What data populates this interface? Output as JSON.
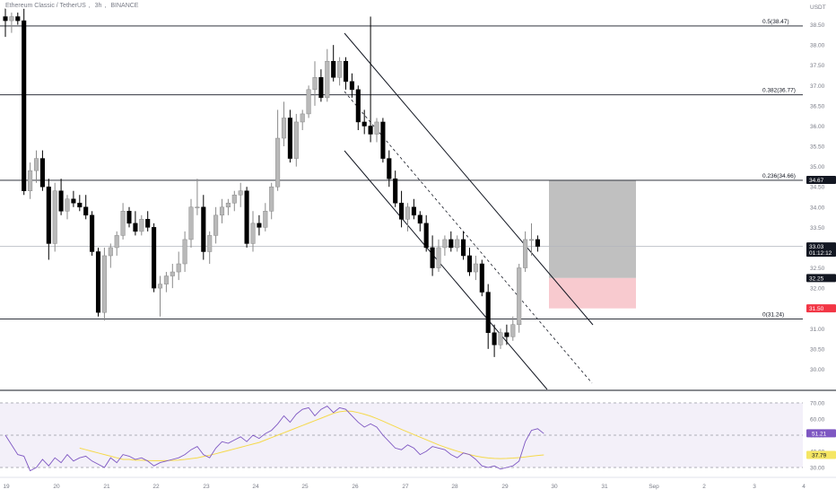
{
  "header": {
    "symbol": "Ethereum Classic / TetherUS",
    "interval": "3h",
    "exchange": "BINANCE"
  },
  "chart_data": {
    "type": "candlestick",
    "title": "Ethereum Classic / TetherUS, 3h, BINANCE",
    "ylim": [
      29.5,
      39.0
    ],
    "y_unit_label": "USDT",
    "y_ticks": [
      "38.50",
      "38.00",
      "37.50",
      "37.00",
      "36.50",
      "36.00",
      "35.50",
      "35.00",
      "34.50",
      "34.00",
      "33.50",
      "33.00",
      "32.50",
      "32.00",
      "31.50",
      "31.00",
      "30.50",
      "30.00",
      "29.50"
    ],
    "x_ticks": [
      "19",
      "20",
      "21",
      "22",
      "23",
      "24",
      "25",
      "26",
      "27",
      "28",
      "29",
      "30",
      "31",
      "Sep",
      "2",
      "3",
      "4"
    ],
    "fib_levels": [
      {
        "label": "0.5(38.47)",
        "value": 38.47
      },
      {
        "label": "0.382(36.77)",
        "value": 36.77
      },
      {
        "label": "0.236(34.66)",
        "value": 34.66
      },
      {
        "label": "0(31.24)",
        "value": 31.24
      }
    ],
    "price_badges": [
      {
        "label": "34.67",
        "value": 34.67,
        "color": "#131722"
      },
      {
        "label": "33.03",
        "label2": "01:12:12",
        "value": 33.03,
        "color": "#131722"
      },
      {
        "label": "32.25",
        "value": 32.25,
        "color": "#131722"
      },
      {
        "label": "31.50",
        "value": 31.5,
        "color": "#f23645"
      }
    ],
    "position": {
      "entry": 32.25,
      "target": 34.67,
      "stop": 31.5,
      "profit_color": "#9e9e9e",
      "loss_color": "#f7c1c7"
    },
    "candles": [
      {
        "o": 38.7,
        "h": 38.9,
        "l": 38.2,
        "c": 38.6
      },
      {
        "o": 38.6,
        "h": 38.8,
        "l": 38.3,
        "c": 38.7
      },
      {
        "o": 38.7,
        "h": 38.8,
        "l": 38.5,
        "c": 38.6
      },
      {
        "o": 38.6,
        "h": 38.9,
        "l": 34.3,
        "c": 34.4
      },
      {
        "o": 34.4,
        "h": 35.1,
        "l": 34.2,
        "c": 34.9
      },
      {
        "o": 34.9,
        "h": 35.4,
        "l": 34.6,
        "c": 35.2
      },
      {
        "o": 35.2,
        "h": 35.4,
        "l": 34.4,
        "c": 34.5
      },
      {
        "o": 34.5,
        "h": 34.7,
        "l": 32.7,
        "c": 33.1
      },
      {
        "o": 33.1,
        "h": 34.6,
        "l": 32.9,
        "c": 34.4
      },
      {
        "o": 34.4,
        "h": 34.7,
        "l": 33.8,
        "c": 33.9
      },
      {
        "o": 33.9,
        "h": 34.3,
        "l": 33.7,
        "c": 34.2
      },
      {
        "o": 34.2,
        "h": 34.4,
        "l": 34.0,
        "c": 34.1
      },
      {
        "o": 34.1,
        "h": 34.3,
        "l": 33.9,
        "c": 34.0
      },
      {
        "o": 34.0,
        "h": 34.3,
        "l": 33.7,
        "c": 33.8
      },
      {
        "o": 33.8,
        "h": 33.9,
        "l": 32.8,
        "c": 32.9
      },
      {
        "o": 32.9,
        "h": 33.0,
        "l": 31.3,
        "c": 31.4
      },
      {
        "o": 31.4,
        "h": 33.0,
        "l": 31.2,
        "c": 32.8
      },
      {
        "o": 32.8,
        "h": 33.1,
        "l": 32.5,
        "c": 33.0
      },
      {
        "o": 33.0,
        "h": 33.4,
        "l": 32.8,
        "c": 33.3
      },
      {
        "o": 33.3,
        "h": 34.1,
        "l": 33.2,
        "c": 33.9
      },
      {
        "o": 33.9,
        "h": 34.0,
        "l": 33.5,
        "c": 33.6
      },
      {
        "o": 33.6,
        "h": 33.9,
        "l": 33.3,
        "c": 33.4
      },
      {
        "o": 33.4,
        "h": 33.8,
        "l": 33.3,
        "c": 33.7
      },
      {
        "o": 33.7,
        "h": 33.9,
        "l": 33.4,
        "c": 33.5
      },
      {
        "o": 33.5,
        "h": 33.6,
        "l": 31.9,
        "c": 32.0
      },
      {
        "o": 32.0,
        "h": 32.3,
        "l": 31.3,
        "c": 32.1
      },
      {
        "o": 32.1,
        "h": 32.4,
        "l": 31.9,
        "c": 32.3
      },
      {
        "o": 32.3,
        "h": 32.6,
        "l": 32.0,
        "c": 32.4
      },
      {
        "o": 32.4,
        "h": 32.9,
        "l": 32.2,
        "c": 32.6
      },
      {
        "o": 32.6,
        "h": 33.4,
        "l": 32.4,
        "c": 33.2
      },
      {
        "o": 33.2,
        "h": 34.2,
        "l": 33.0,
        "c": 34.0
      },
      {
        "o": 34.0,
        "h": 34.7,
        "l": 33.8,
        "c": 34.0
      },
      {
        "o": 34.0,
        "h": 34.3,
        "l": 32.7,
        "c": 32.9
      },
      {
        "o": 32.9,
        "h": 33.4,
        "l": 32.6,
        "c": 33.3
      },
      {
        "o": 33.3,
        "h": 34.0,
        "l": 33.1,
        "c": 33.8
      },
      {
        "o": 33.8,
        "h": 34.2,
        "l": 33.6,
        "c": 34.0
      },
      {
        "o": 34.0,
        "h": 34.2,
        "l": 33.8,
        "c": 34.1
      },
      {
        "o": 34.1,
        "h": 34.4,
        "l": 33.9,
        "c": 34.3
      },
      {
        "o": 34.3,
        "h": 34.6,
        "l": 34.0,
        "c": 34.4
      },
      {
        "o": 34.4,
        "h": 34.5,
        "l": 33.0,
        "c": 33.1
      },
      {
        "o": 33.1,
        "h": 33.9,
        "l": 32.9,
        "c": 33.6
      },
      {
        "o": 33.6,
        "h": 33.8,
        "l": 33.3,
        "c": 33.5
      },
      {
        "o": 33.5,
        "h": 34.1,
        "l": 33.4,
        "c": 33.9
      },
      {
        "o": 33.9,
        "h": 34.6,
        "l": 33.7,
        "c": 34.5
      },
      {
        "o": 34.5,
        "h": 36.4,
        "l": 34.4,
        "c": 35.7
      },
      {
        "o": 35.7,
        "h": 36.6,
        "l": 35.5,
        "c": 36.2
      },
      {
        "o": 36.2,
        "h": 36.4,
        "l": 35.1,
        "c": 35.2
      },
      {
        "o": 35.2,
        "h": 36.3,
        "l": 35.0,
        "c": 36.1
      },
      {
        "o": 36.1,
        "h": 36.4,
        "l": 35.9,
        "c": 36.3
      },
      {
        "o": 36.3,
        "h": 37.0,
        "l": 36.2,
        "c": 36.9
      },
      {
        "o": 36.9,
        "h": 37.6,
        "l": 36.5,
        "c": 37.2
      },
      {
        "o": 37.2,
        "h": 37.4,
        "l": 36.6,
        "c": 36.7
      },
      {
        "o": 36.7,
        "h": 37.9,
        "l": 36.6,
        "c": 37.6
      },
      {
        "o": 37.6,
        "h": 38.0,
        "l": 37.1,
        "c": 37.2
      },
      {
        "o": 37.2,
        "h": 37.7,
        "l": 37.0,
        "c": 37.6
      },
      {
        "o": 37.6,
        "h": 37.7,
        "l": 36.9,
        "c": 37.1
      },
      {
        "o": 37.1,
        "h": 37.3,
        "l": 36.7,
        "c": 36.9
      },
      {
        "o": 36.9,
        "h": 37.0,
        "l": 35.9,
        "c": 36.1
      },
      {
        "o": 36.1,
        "h": 36.4,
        "l": 35.8,
        "c": 36.0
      },
      {
        "o": 36.0,
        "h": 38.7,
        "l": 35.6,
        "c": 35.8
      },
      {
        "o": 35.8,
        "h": 36.2,
        "l": 35.6,
        "c": 36.1
      },
      {
        "o": 36.1,
        "h": 36.2,
        "l": 35.1,
        "c": 35.2
      },
      {
        "o": 35.2,
        "h": 35.4,
        "l": 34.5,
        "c": 34.7
      },
      {
        "o": 34.7,
        "h": 34.9,
        "l": 34.0,
        "c": 34.1
      },
      {
        "o": 34.1,
        "h": 34.4,
        "l": 33.5,
        "c": 33.7
      },
      {
        "o": 33.7,
        "h": 34.1,
        "l": 33.4,
        "c": 34.0
      },
      {
        "o": 34.0,
        "h": 34.2,
        "l": 33.7,
        "c": 33.8
      },
      {
        "o": 33.8,
        "h": 33.9,
        "l": 33.4,
        "c": 33.6
      },
      {
        "o": 33.6,
        "h": 33.8,
        "l": 32.9,
        "c": 33.0
      },
      {
        "o": 33.0,
        "h": 33.3,
        "l": 32.3,
        "c": 32.5
      },
      {
        "o": 32.5,
        "h": 33.2,
        "l": 32.4,
        "c": 33.0
      },
      {
        "o": 33.0,
        "h": 33.3,
        "l": 32.8,
        "c": 33.2
      },
      {
        "o": 33.2,
        "h": 33.4,
        "l": 32.9,
        "c": 33.0
      },
      {
        "o": 33.0,
        "h": 33.3,
        "l": 32.9,
        "c": 33.2
      },
      {
        "o": 33.2,
        "h": 33.4,
        "l": 32.7,
        "c": 32.8
      },
      {
        "o": 32.8,
        "h": 33.0,
        "l": 32.3,
        "c": 32.4
      },
      {
        "o": 32.4,
        "h": 32.8,
        "l": 32.2,
        "c": 32.6
      },
      {
        "o": 32.6,
        "h": 32.7,
        "l": 31.8,
        "c": 31.9
      },
      {
        "o": 31.9,
        "h": 32.1,
        "l": 30.5,
        "c": 30.9
      },
      {
        "o": 30.9,
        "h": 31.1,
        "l": 30.3,
        "c": 30.6
      },
      {
        "o": 30.6,
        "h": 31.0,
        "l": 30.5,
        "c": 30.9
      },
      {
        "o": 30.9,
        "h": 31.1,
        "l": 30.6,
        "c": 30.8
      },
      {
        "o": 30.8,
        "h": 31.3,
        "l": 30.7,
        "c": 31.1
      },
      {
        "o": 31.1,
        "h": 32.6,
        "l": 30.9,
        "c": 32.5
      },
      {
        "o": 32.5,
        "h": 33.4,
        "l": 32.4,
        "c": 33.2
      },
      {
        "o": 33.2,
        "h": 33.6,
        "l": 32.8,
        "c": 33.2
      },
      {
        "o": 33.2,
        "h": 33.3,
        "l": 32.9,
        "c": 33.03
      }
    ],
    "rsi": {
      "ylim": [
        25,
        75
      ],
      "y_ticks": [
        "70.00",
        "60.00",
        "50.00",
        "40.00",
        "30.00"
      ],
      "badges": [
        {
          "label": "51.21",
          "value": 51.21,
          "color": "#7e57c2"
        },
        {
          "label": "37.79",
          "value": 37.79,
          "color": "#f5e663"
        }
      ],
      "upper": 70,
      "lower": 30,
      "mid": 50,
      "values": [
        50,
        44,
        38,
        37,
        28,
        30,
        35,
        31,
        36,
        33,
        38,
        34,
        36,
        37,
        34,
        32,
        30,
        36,
        33,
        38,
        37,
        35,
        36,
        34,
        31,
        33,
        34,
        35,
        36,
        38,
        41,
        43,
        38,
        36,
        42,
        46,
        45,
        47,
        49,
        46,
        50,
        48,
        51,
        53,
        57,
        62,
        58,
        63,
        66,
        67,
        62,
        66,
        68,
        64,
        67,
        66,
        62,
        58,
        55,
        57,
        55,
        50,
        46,
        42,
        41,
        44,
        42,
        38,
        40,
        43,
        42,
        41,
        38,
        36,
        39,
        38,
        35,
        31,
        30,
        31,
        29,
        30,
        31,
        34,
        46,
        53,
        54,
        51
      ],
      "ma": [
        42,
        41,
        40,
        39,
        38,
        37,
        36,
        35,
        35,
        34.5,
        34.5,
        34.3,
        34.2,
        34.2,
        34.3,
        34.4,
        34.6,
        35,
        35.5,
        36,
        36.8,
        37.6,
        38.5,
        39.5,
        40.5,
        41.5,
        42.5,
        43.5,
        44.5,
        45.5,
        47,
        48.5,
        50,
        51.5,
        53,
        54.5,
        56,
        57.5,
        59,
        60.5,
        62,
        63.5,
        64.5,
        65,
        64.8,
        64,
        63,
        61.8,
        60.3,
        58.7,
        57,
        55.3,
        53.6,
        52,
        50.4,
        48.8,
        47.2,
        45.6,
        44,
        42.6,
        41.3,
        40.1,
        39,
        38,
        37.1,
        36.4,
        35.9,
        35.6,
        35.5,
        35.6,
        35.8,
        36.1,
        36.5,
        37,
        37.4,
        37.79
      ]
    }
  }
}
